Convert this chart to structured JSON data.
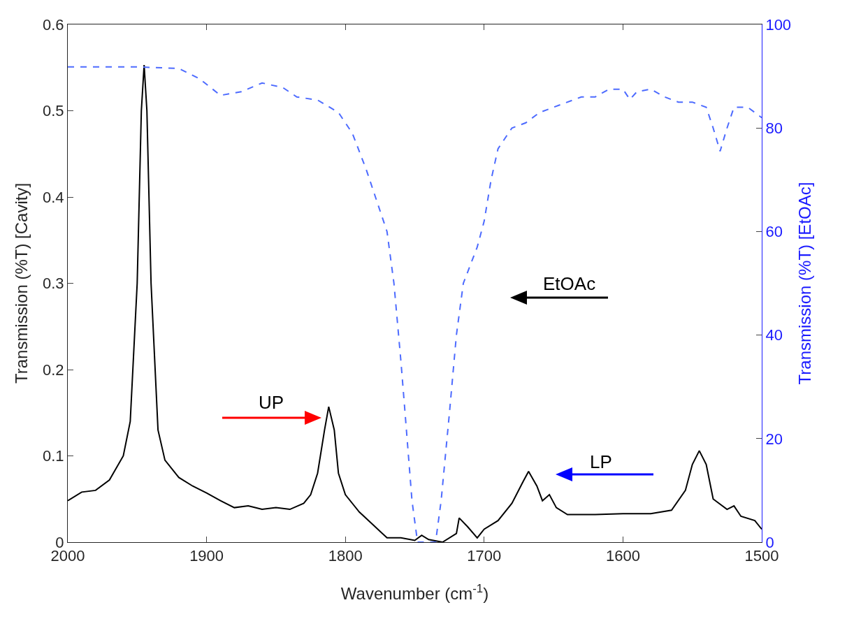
{
  "chart_data": {
    "type": "line",
    "xlabel": "Wavenumber (cm$^{-1}$)",
    "ylabel": "Transmission (%T) [Cavity]",
    "y2label": "Transmission (%T) [EtOAc]",
    "xlim": [
      2000,
      1500
    ],
    "xticks": [
      2000,
      1900,
      1800,
      1700,
      1600,
      1500
    ],
    "ylim": [
      0,
      0.6
    ],
    "yticks": [
      0,
      0.1,
      0.2,
      0.3,
      0.4,
      0.5,
      0.6
    ],
    "y2lim": [
      0,
      100
    ],
    "y2ticks": [
      0,
      20,
      40,
      60,
      80,
      100
    ],
    "grid": false,
    "series": [
      {
        "color": "#000000",
        "line_style": "solid",
        "x": [
          2000,
          1990,
          1980,
          1970,
          1960,
          1955,
          1950,
          1947,
          1945,
          1943,
          1940,
          1935,
          1930,
          1920,
          1910,
          1900,
          1890,
          1880,
          1870,
          1860,
          1850,
          1840,
          1830,
          1825,
          1820,
          1815,
          1812,
          1808,
          1805,
          1800,
          1790,
          1780,
          1770,
          1760,
          1750,
          1745,
          1740,
          1730,
          1720,
          1718,
          1712,
          1705,
          1700,
          1690,
          1680,
          1672,
          1668,
          1662,
          1658,
          1653,
          1648,
          1640,
          1620,
          1600,
          1580,
          1565,
          1555,
          1550,
          1545,
          1540,
          1535,
          1525,
          1520,
          1515,
          1505,
          1500
        ],
        "values": [
          0.048,
          0.058,
          0.06,
          0.072,
          0.1,
          0.14,
          0.3,
          0.5,
          0.553,
          0.5,
          0.3,
          0.13,
          0.095,
          0.075,
          0.065,
          0.057,
          0.048,
          0.04,
          0.042,
          0.038,
          0.04,
          0.038,
          0.045,
          0.055,
          0.08,
          0.13,
          0.157,
          0.13,
          0.08,
          0.055,
          0.035,
          0.02,
          0.005,
          0.005,
          0.002,
          0.008,
          0.003,
          0,
          0.01,
          0.028,
          0.018,
          0.005,
          0.015,
          0.025,
          0.045,
          0.07,
          0.082,
          0.065,
          0.048,
          0.055,
          0.04,
          0.032,
          0.032,
          0.033,
          0.033,
          0.037,
          0.06,
          0.09,
          0.106,
          0.09,
          0.05,
          0.038,
          0.042,
          0.03,
          0.025,
          0.015
        ]
      },
      {
        "color": "#4d6bff",
        "line_style": "dashed",
        "axis": "y2",
        "x": [
          2000,
          1950,
          1920,
          1905,
          1890,
          1875,
          1860,
          1845,
          1835,
          1820,
          1805,
          1795,
          1785,
          1775,
          1770,
          1765,
          1760,
          1757,
          1752,
          1748,
          1735,
          1731,
          1725,
          1720,
          1715,
          1705,
          1700,
          1695,
          1690,
          1680,
          1670,
          1660,
          1650,
          1630,
          1620,
          1610,
          1600,
          1595,
          1590,
          1580,
          1570,
          1560,
          1550,
          1540,
          1535,
          1530,
          1525,
          1520,
          1510,
          1500
        ],
        "values": [
          91.8,
          91.8,
          91.5,
          89.5,
          86.3,
          87,
          88.7,
          87.8,
          86,
          85.4,
          83,
          79,
          72,
          64,
          60,
          50,
          35,
          25,
          8,
          0,
          0,
          8,
          25,
          40,
          50,
          57,
          62,
          70,
          76,
          80,
          81,
          83,
          84,
          86,
          86,
          87.5,
          87.5,
          85.5,
          87,
          87.5,
          86,
          85,
          85,
          84,
          80,
          75.5,
          80,
          84,
          84,
          82
        ]
      }
    ],
    "annotations": [
      "UP",
      "LP",
      "EtOAc"
    ]
  }
}
